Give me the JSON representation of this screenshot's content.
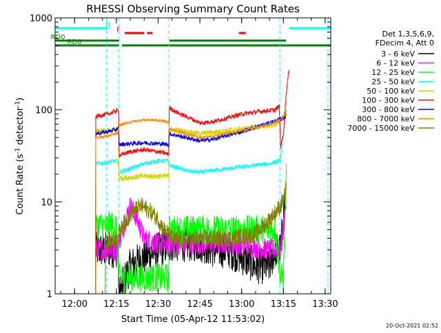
{
  "chart_data": {
    "type": "line",
    "title": "RHESSI Observing Summary Count Rates",
    "xlabel": "Start Time (05-Apr-12 11:53:02)",
    "ylabel_main": "Count Rate (s",
    "ylabel_sup1": "-1",
    "ylabel_mid": " detector",
    "ylabel_sup2": "-1",
    "ylabel_end": ")",
    "yscale": "log",
    "ylim": [
      1,
      1000
    ],
    "xlim_minutes": [
      713,
      812
    ],
    "x_ticks": [
      {
        "min": 720,
        "label": "12:00"
      },
      {
        "min": 735,
        "label": "12:15"
      },
      {
        "min": 750,
        "label": "12:30"
      },
      {
        "min": 765,
        "label": "12:45"
      },
      {
        "min": 780,
        "label": "13:00"
      },
      {
        "min": 795,
        "label": "13:15"
      },
      {
        "min": 810,
        "label": "13:30"
      }
    ],
    "y_ticks": [
      {
        "value": 1,
        "label": "1"
      },
      {
        "value": 10,
        "label": "10"
      },
      {
        "value": 100,
        "label": "100"
      },
      {
        "value": 1000,
        "label": "1000"
      }
    ],
    "legend": {
      "placement": "right",
      "header": [
        "Det 1,3,5,6,9,",
        "FDecim 4, Att 0"
      ],
      "entries": [
        {
          "label": "3 - 6 keV",
          "color": "#000000"
        },
        {
          "label": "6 - 12 keV",
          "color": "#ff00ff"
        },
        {
          "label": "12 - 25 keV",
          "color": "#00ff00"
        },
        {
          "label": "25 - 50 keV",
          "color": "#00ffff"
        },
        {
          "label": "50 - 100 keV",
          "color": "#d4d400"
        },
        {
          "label": "100 - 300 keV",
          "color": "#ff0000"
        },
        {
          "label": "300 - 800 keV",
          "color": "#0000ff"
        },
        {
          "label": "800 - 7000 keV",
          "color": "#ff8800"
        },
        {
          "label": "7000 - 15000 keV",
          "color": "#808000"
        }
      ]
    },
    "flags": {
      "N": {
        "label": "N",
        "color": "#00ffff",
        "segments": [
          [
            713,
            732
          ],
          [
            797,
            812
          ]
        ]
      },
      "F": {
        "label": "F",
        "color": "#ff0000",
        "segments": [
          [
            738,
            745
          ],
          [
            746,
            748
          ],
          [
            779,
            781.5
          ]
        ]
      },
      "RD0": {
        "label": "RD0",
        "color": "#008000",
        "segments": [
          [
            713,
            736
          ],
          [
            754,
            796
          ]
        ]
      },
      "RD6": {
        "label": "RD6",
        "color": "#008000",
        "segments": [
          [
            713,
            736
          ],
          [
            737,
            754
          ],
          [
            754,
            796
          ],
          [
            796,
            812
          ]
        ]
      }
    },
    "vlines_dashed": [
      {
        "min": 731.5,
        "color": "#00ffff"
      },
      {
        "min": 735.8,
        "color": "#00ffff"
      },
      {
        "min": 753.9,
        "color": "#00ffff"
      },
      {
        "min": 793.7,
        "color": "#00ffff"
      },
      {
        "min": 811.0,
        "color": "#00ffff"
      }
    ],
    "series": [
      {
        "name": "3 - 6 keV",
        "color": "#000000",
        "noise": 0.25,
        "points": [
          [
            727.5,
            1
          ],
          [
            727.6,
            3.0
          ],
          [
            735.5,
            3.0
          ],
          [
            736,
            1
          ],
          [
            740,
            2
          ],
          [
            745,
            2.5
          ],
          [
            750,
            3
          ],
          [
            755,
            3.5
          ],
          [
            760,
            3.5
          ],
          [
            765,
            3.5
          ],
          [
            770,
            3
          ],
          [
            775,
            3
          ],
          [
            780,
            2.5
          ],
          [
            785,
            2
          ],
          [
            790,
            2
          ],
          [
            792,
            3
          ],
          [
            794,
            3
          ],
          [
            795.5,
            10
          ]
        ]
      },
      {
        "name": "6 - 12 keV",
        "color": "#ff00ff",
        "noise": 0.15,
        "points": [
          [
            727.5,
            1
          ],
          [
            727.6,
            3.0
          ],
          [
            735,
            3.0
          ],
          [
            738,
            6
          ],
          [
            740,
            9
          ],
          [
            742,
            7
          ],
          [
            745,
            4
          ],
          [
            750,
            3.5
          ],
          [
            755,
            3.5
          ],
          [
            760,
            3.5
          ],
          [
            770,
            3.5
          ],
          [
            780,
            3.5
          ],
          [
            785,
            3.2
          ],
          [
            790,
            3.0
          ],
          [
            794,
            3.0
          ],
          [
            796,
            10
          ]
        ]
      },
      {
        "name": "12 - 25 keV",
        "color": "#00ff00",
        "noise": 0.2,
        "points": [
          [
            727.5,
            1
          ],
          [
            727.6,
            5.5
          ],
          [
            735,
            5.5
          ],
          [
            736,
            1.5
          ],
          [
            740,
            1.5
          ],
          [
            745,
            1.5
          ],
          [
            748,
            1.5
          ],
          [
            753.8,
            1.5
          ],
          [
            754,
            5
          ],
          [
            760,
            5
          ],
          [
            765,
            5
          ],
          [
            770,
            5
          ],
          [
            775,
            5
          ],
          [
            780,
            5
          ],
          [
            785,
            5
          ],
          [
            790,
            5
          ],
          [
            792,
            5
          ],
          [
            794,
            1.5
          ],
          [
            795,
            1.5
          ],
          [
            796,
            20
          ]
        ]
      },
      {
        "name": "25 - 50 keV",
        "color": "#00ffff",
        "noise": 0.03,
        "points": [
          [
            727.5,
            1
          ],
          [
            727.6,
            26
          ],
          [
            732,
            27
          ],
          [
            735.5,
            28
          ],
          [
            736,
            21
          ],
          [
            740,
            23
          ],
          [
            745,
            26
          ],
          [
            750,
            28
          ],
          [
            753.5,
            28
          ],
          [
            754,
            25
          ],
          [
            760,
            22
          ],
          [
            765,
            21
          ],
          [
            770,
            22
          ],
          [
            775,
            23
          ],
          [
            780,
            24
          ],
          [
            785,
            25
          ],
          [
            790,
            26
          ],
          [
            793.5,
            28
          ],
          [
            794,
            30
          ],
          [
            796,
            100
          ]
        ]
      },
      {
        "name": "50 - 100 keV",
        "color": "#d4d400",
        "noise": 0.04,
        "points": [
          [
            727.5,
            1
          ],
          [
            727.6,
            58
          ],
          [
            735.8,
            60
          ],
          [
            736,
            18
          ],
          [
            745,
            19
          ],
          [
            753.8,
            19
          ],
          [
            754,
            62
          ],
          [
            765,
            55
          ],
          [
            780,
            62
          ],
          [
            793,
            70
          ],
          [
            796,
            95
          ]
        ]
      },
      {
        "name": "100 - 300 keV",
        "color": "#ff0000",
        "noise": 0.03,
        "points": [
          [
            727.5,
            1
          ],
          [
            727.6,
            85
          ],
          [
            732,
            90
          ],
          [
            735.8,
            100
          ],
          [
            736,
            32
          ],
          [
            740,
            35
          ],
          [
            745,
            37
          ],
          [
            750,
            35
          ],
          [
            753.8,
            33
          ],
          [
            754,
            105
          ],
          [
            758,
            90
          ],
          [
            762,
            80
          ],
          [
            765,
            72
          ],
          [
            770,
            75
          ],
          [
            775,
            82
          ],
          [
            780,
            90
          ],
          [
            785,
            95
          ],
          [
            792,
            100
          ],
          [
            793.5,
            110
          ],
          [
            794,
            40
          ],
          [
            795,
            55
          ],
          [
            796,
            150
          ],
          [
            797,
            280
          ]
        ]
      },
      {
        "name": "300 - 800 keV",
        "color": "#0000ff",
        "noise": 0.03,
        "points": [
          [
            727.5,
            1
          ],
          [
            727.6,
            55
          ],
          [
            732,
            58
          ],
          [
            735.8,
            63
          ],
          [
            736,
            42
          ],
          [
            740,
            43
          ],
          [
            745,
            44
          ],
          [
            750,
            43
          ],
          [
            753.8,
            42
          ],
          [
            754,
            55
          ],
          [
            760,
            50
          ],
          [
            765,
            46
          ],
          [
            770,
            48
          ],
          [
            775,
            53
          ],
          [
            780,
            58
          ],
          [
            785,
            65
          ],
          [
            790,
            72
          ],
          [
            793.5,
            78
          ],
          [
            796,
            85
          ]
        ]
      },
      {
        "name": "800 - 7000 keV",
        "color": "#ff8800",
        "noise": 0.02,
        "points": [
          [
            727.5,
            1
          ],
          [
            727.6,
            50
          ],
          [
            732,
            52
          ],
          [
            735.8,
            56
          ],
          [
            736,
            68
          ],
          [
            740,
            74
          ],
          [
            745,
            78
          ],
          [
            750,
            77
          ],
          [
            753.8,
            74
          ],
          [
            754,
            62
          ],
          [
            760,
            55
          ],
          [
            765,
            50
          ],
          [
            770,
            52
          ],
          [
            775,
            56
          ],
          [
            780,
            60
          ],
          [
            785,
            64
          ],
          [
            790,
            70
          ],
          [
            793.5,
            76
          ],
          [
            796,
            92
          ]
        ]
      },
      {
        "name": "7000 - 15000 keV",
        "color": "#808000",
        "noise": 0.12,
        "points": [
          [
            731,
            1
          ],
          [
            731.1,
            3.5
          ],
          [
            735,
            4
          ],
          [
            738,
            6
          ],
          [
            741,
            8
          ],
          [
            744,
            9
          ],
          [
            747,
            8
          ],
          [
            750,
            6.5
          ],
          [
            752,
            5
          ],
          [
            753.8,
            4.5
          ],
          [
            755,
            4
          ],
          [
            760,
            3.8
          ],
          [
            765,
            4
          ],
          [
            770,
            4
          ],
          [
            775,
            4
          ],
          [
            780,
            4.2
          ],
          [
            785,
            4.5
          ],
          [
            788,
            5.5
          ],
          [
            791,
            7
          ],
          [
            794,
            9
          ],
          [
            796,
            13
          ]
        ]
      }
    ]
  },
  "timestamp": "20-Oct-2021 02:52"
}
